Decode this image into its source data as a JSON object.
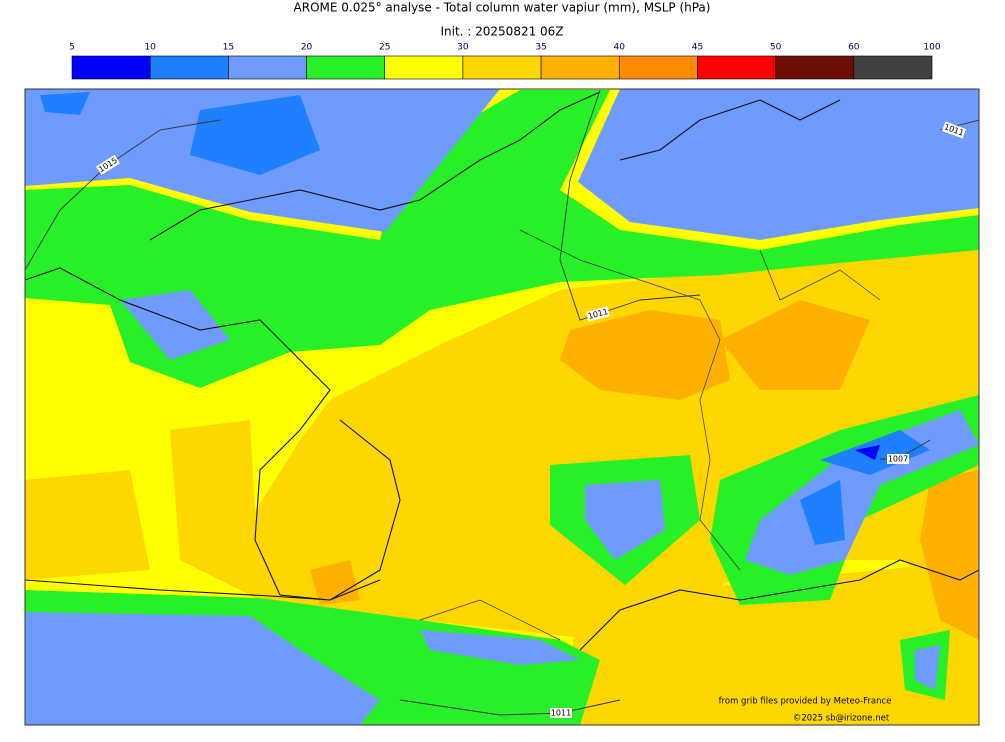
{
  "title": "AROME 0.025° analyse - Total column water vapiur (mm), MSLP (hPa)",
  "subtitle": "Init. : 20250821 06Z",
  "colorbar": {
    "ticks": [
      5,
      10,
      15,
      20,
      25,
      30,
      35,
      40,
      45,
      50,
      60,
      100
    ],
    "colors": [
      "#0000ff",
      "#1e80ff",
      "#6f9bff",
      "#28f028",
      "#ffff00",
      "#ffd700",
      "#ffb000",
      "#ff8a00",
      "#ff0000",
      "#6b0f06",
      "#404040"
    ]
  },
  "isobar_labels": [
    1015,
    1011,
    1011,
    1007,
    1011
  ],
  "credits": [
    "from grib files provided by Meteo-France",
    "©2025 sb@irizone.net"
  ]
}
